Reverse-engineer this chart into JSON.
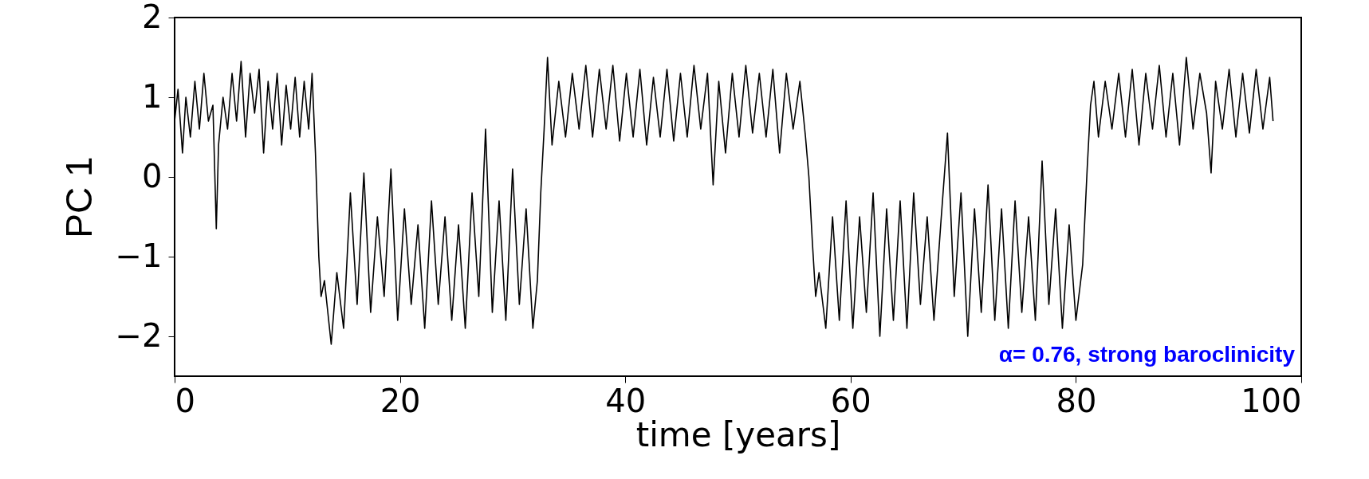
{
  "chart_data": {
    "type": "line",
    "xlabel": "time [years]",
    "ylabel": "PC 1",
    "xlim": [
      0,
      100
    ],
    "xticks": [
      0,
      20,
      40,
      60,
      80,
      100
    ],
    "ylim": [
      -2.5,
      2
    ],
    "yticks": [
      -2,
      -1,
      0,
      1,
      2
    ],
    "grid": false,
    "marker": "none",
    "line_style": "solid",
    "annotations": [
      "α= 0.76, strong baroclinicity"
    ],
    "series": [
      {
        "color": "#000000",
        "x": [
          0,
          0.3,
          0.7,
          1,
          1.4,
          1.8,
          2.2,
          2.6,
          3,
          3.4,
          3.7,
          3.9,
          4.3,
          4.7,
          5.1,
          5.5,
          5.9,
          6.3,
          6.7,
          7.1,
          7.5,
          7.9,
          8.3,
          8.7,
          9.1,
          9.5,
          9.9,
          10.3,
          10.7,
          11.1,
          11.5,
          11.9,
          12.2,
          12.5,
          12.8,
          13.0,
          13.3,
          13.9,
          14.4,
          15,
          15.6,
          16.2,
          16.8,
          17.4,
          18,
          18.6,
          19.2,
          19.8,
          20.4,
          21,
          21.6,
          22.2,
          22.8,
          23.4,
          24,
          24.6,
          25.2,
          25.8,
          26.4,
          27,
          27.6,
          28.2,
          28.8,
          29.4,
          30,
          30.6,
          31.2,
          31.8,
          32.2,
          32.5,
          32.8,
          33.1,
          33.5,
          34.1,
          34.7,
          35.3,
          35.9,
          36.5,
          37.1,
          37.7,
          38.3,
          38.9,
          39.5,
          40.1,
          40.7,
          41.3,
          41.9,
          42.5,
          43.1,
          43.7,
          44.3,
          44.9,
          45.5,
          46.1,
          46.7,
          47.3,
          47.8,
          48.3,
          48.9,
          49.5,
          50.1,
          50.7,
          51.3,
          51.9,
          52.5,
          53.1,
          53.7,
          54.3,
          54.9,
          55.5,
          56.0,
          56.3,
          56.6,
          56.9,
          57.2,
          57.8,
          58.4,
          59,
          59.6,
          60.2,
          60.8,
          61.4,
          62,
          62.6,
          63.2,
          63.8,
          64.4,
          65,
          65.6,
          66.2,
          66.8,
          67.4,
          68,
          68.6,
          69.2,
          69.8,
          70.4,
          71,
          71.6,
          72.2,
          72.8,
          73.4,
          74,
          74.6,
          75.2,
          75.8,
          76.4,
          77,
          77.6,
          78.2,
          78.8,
          79.4,
          80,
          80.6,
          81,
          81.3,
          81.6,
          82,
          82.6,
          83.2,
          83.8,
          84.4,
          85,
          85.6,
          86.2,
          86.8,
          87.4,
          88,
          88.6,
          89.2,
          89.8,
          90.4,
          91,
          91.6,
          92,
          92.4,
          93,
          93.6,
          94.2,
          94.8,
          95.4,
          96,
          96.6,
          97.2,
          97.5
        ],
        "values": [
          0.7,
          1.1,
          0.3,
          1.0,
          0.5,
          1.2,
          0.6,
          1.3,
          0.7,
          0.9,
          -0.65,
          0.4,
          1.0,
          0.6,
          1.3,
          0.7,
          1.45,
          0.5,
          1.3,
          0.8,
          1.35,
          0.3,
          1.2,
          0.6,
          1.3,
          0.4,
          1.15,
          0.6,
          1.25,
          0.5,
          1.2,
          0.6,
          1.3,
          0.3,
          -1.0,
          -1.5,
          -1.3,
          -2.1,
          -1.2,
          -1.9,
          -0.2,
          -1.6,
          0.05,
          -1.7,
          -0.5,
          -1.5,
          0.1,
          -1.8,
          -0.4,
          -1.6,
          -0.6,
          -1.9,
          -0.3,
          -1.6,
          -0.5,
          -1.8,
          -0.6,
          -1.9,
          -0.2,
          -1.5,
          0.6,
          -1.7,
          -0.3,
          -1.8,
          0.1,
          -1.6,
          -0.4,
          -1.9,
          -1.3,
          -0.2,
          0.6,
          1.5,
          0.4,
          1.2,
          0.5,
          1.3,
          0.6,
          1.4,
          0.5,
          1.35,
          0.6,
          1.4,
          0.45,
          1.3,
          0.5,
          1.35,
          0.4,
          1.25,
          0.5,
          1.35,
          0.45,
          1.3,
          0.5,
          1.4,
          0.6,
          1.3,
          -0.1,
          1.2,
          0.3,
          1.3,
          0.5,
          1.4,
          0.55,
          1.3,
          0.5,
          1.35,
          0.3,
          1.3,
          0.6,
          1.2,
          0.5,
          0.0,
          -0.8,
          -1.5,
          -1.2,
          -1.9,
          -0.5,
          -1.8,
          -0.3,
          -1.9,
          -0.5,
          -1.7,
          -0.2,
          -2.0,
          -0.4,
          -1.8,
          -0.3,
          -1.9,
          -0.2,
          -1.6,
          -0.5,
          -1.8,
          -0.6,
          0.55,
          -1.5,
          -0.2,
          -2.0,
          -0.4,
          -1.7,
          -0.1,
          -1.8,
          -0.4,
          -1.9,
          -0.3,
          -1.7,
          -0.5,
          -1.8,
          0.2,
          -1.6,
          -0.4,
          -1.9,
          -0.6,
          -1.8,
          -1.1,
          0.1,
          0.9,
          1.2,
          0.5,
          1.2,
          0.6,
          1.3,
          0.5,
          1.35,
          0.4,
          1.3,
          0.6,
          1.4,
          0.5,
          1.3,
          0.4,
          1.5,
          0.6,
          1.3,
          0.8,
          0.05,
          1.2,
          0.6,
          1.35,
          0.5,
          1.3,
          0.55,
          1.35,
          0.6,
          1.25,
          0.7
        ]
      }
    ]
  }
}
